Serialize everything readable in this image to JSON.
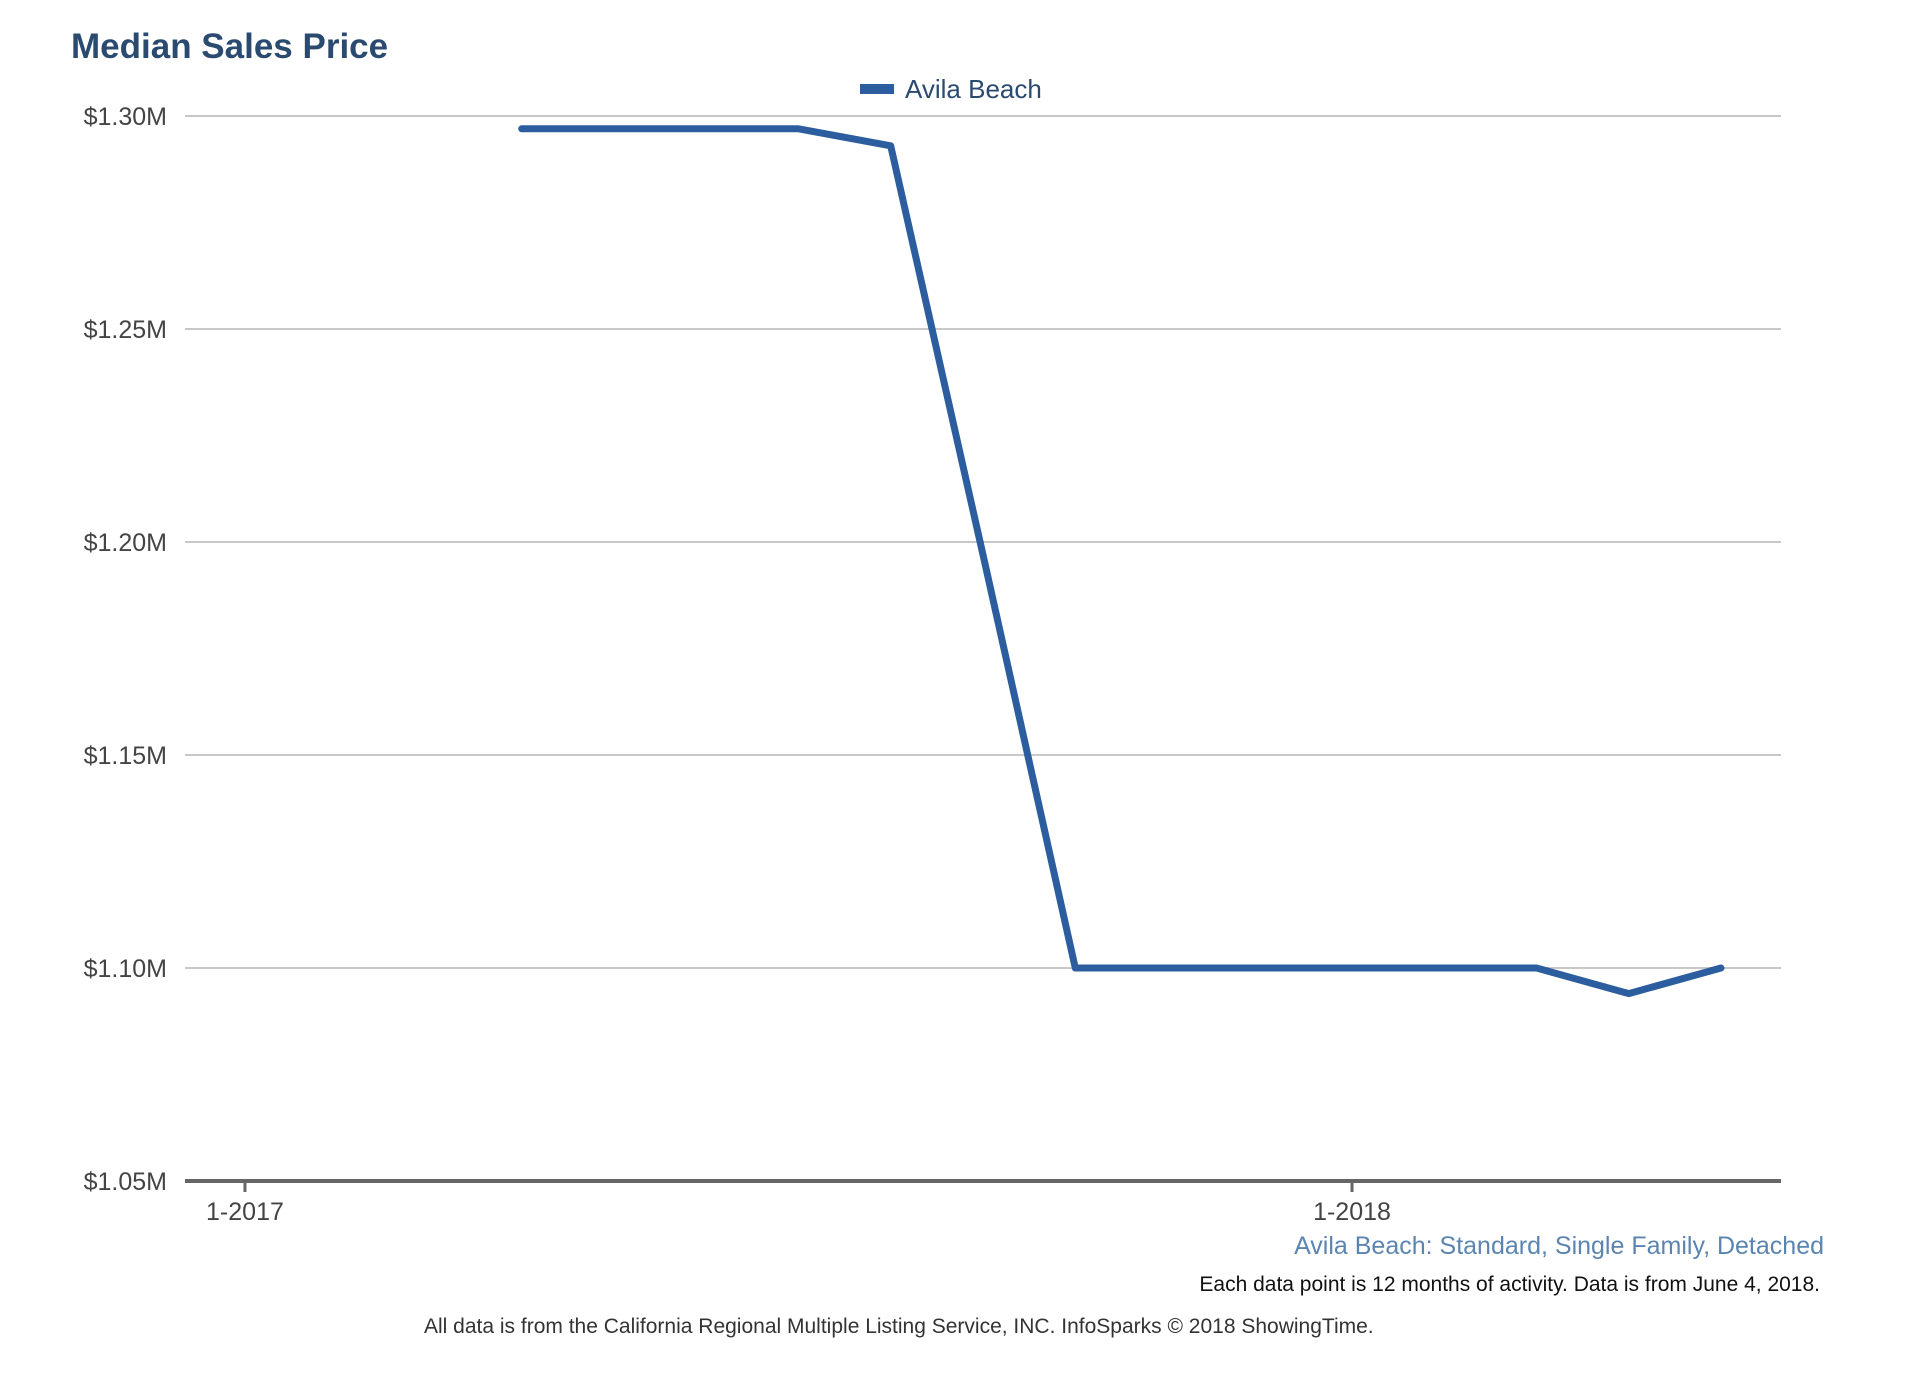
{
  "chart_data": {
    "type": "line",
    "title": "Median Sales Price",
    "xlabel": "",
    "ylabel": "",
    "x_tick_labels": [
      "1-2017",
      "1-2018"
    ],
    "y_tick_labels": [
      "$1.30M",
      "$1.25M",
      "$1.20M",
      "$1.15M",
      "$1.10M",
      "$1.05M"
    ],
    "y_ticks": [
      1.3,
      1.25,
      1.2,
      1.15,
      1.1,
      1.05
    ],
    "ylim": [
      1.05,
      1.3
    ],
    "xlim": [
      "2016-12",
      "2018-06"
    ],
    "x": [
      "2017-04",
      "2017-05",
      "2017-06",
      "2017-07",
      "2017-08",
      "2017-09",
      "2017-10",
      "2017-11",
      "2017-12",
      "2018-01",
      "2018-02",
      "2018-03",
      "2018-04",
      "2018-05"
    ],
    "series": [
      {
        "name": "Avila Beach",
        "color": "#2c5d9e",
        "values": [
          1.297,
          1.297,
          1.297,
          1.297,
          1.293,
          1.197,
          1.1,
          1.1,
          1.1,
          1.1,
          1.1,
          1.1,
          1.094,
          1.1
        ]
      }
    ],
    "grid": true,
    "legend_position": "top-center",
    "subtitle": "Avila Beach: Standard, Single Family, Detached",
    "note": "Each data point is 12 months of activity. Data is from June 4, 2018.",
    "source": "All data is from the California Regional Multiple Listing Service, INC. InfoSparks © 2018 ShowingTime."
  }
}
